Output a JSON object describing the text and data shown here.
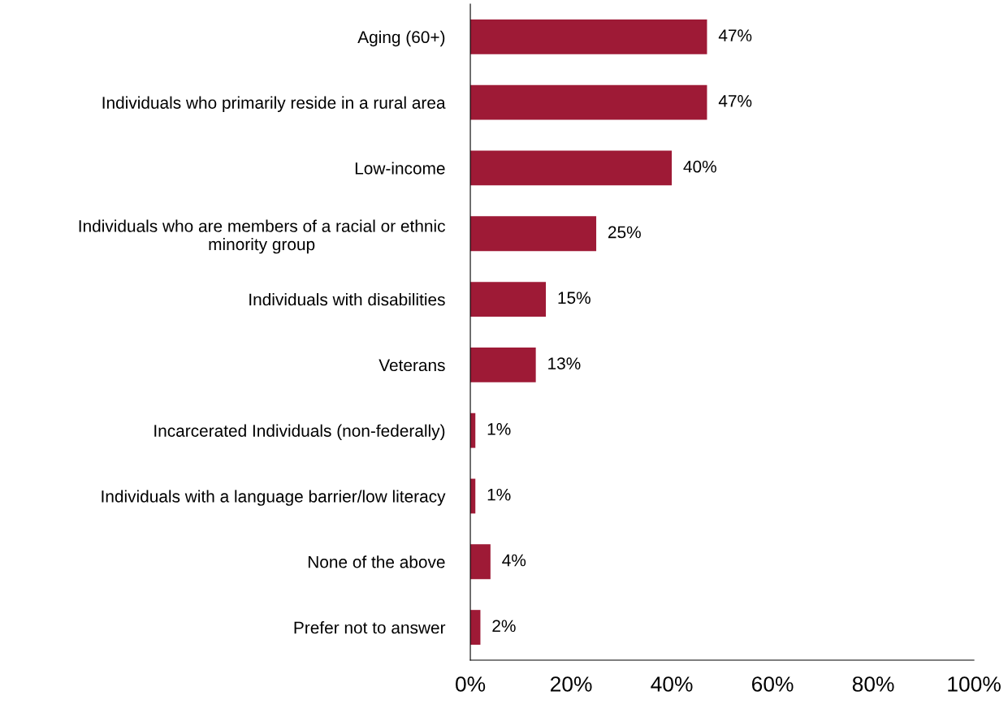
{
  "chart_data": {
    "type": "bar",
    "orientation": "horizontal",
    "categories": [
      "Aging (60+)",
      "Individuals who primarily reside in a rural area",
      "Low-income",
      "Individuals who are members of a racial or ethnic\nminority group",
      "Individuals with disabilities",
      "Veterans",
      "Incarcerated Individuals (non-federally)",
      "Individuals with a language barrier/low literacy",
      "None of the above",
      "Prefer not to answer"
    ],
    "values": [
      47,
      47,
      40,
      25,
      15,
      13,
      1,
      1,
      4,
      2
    ],
    "value_labels": [
      "47%",
      "47%",
      "40%",
      "25%",
      "15%",
      "13%",
      "1%",
      "1%",
      "4%",
      "2%"
    ],
    "color": "#9e1a36",
    "xlim": [
      0,
      100
    ],
    "xticks": [
      {
        "value": 0,
        "label": "0%"
      },
      {
        "value": 20,
        "label": "20%"
      },
      {
        "value": 40,
        "label": "40%"
      },
      {
        "value": 60,
        "label": "60%"
      },
      {
        "value": 80,
        "label": "80%"
      },
      {
        "value": 100,
        "label": "100%"
      }
    ],
    "grid": false,
    "legend": false
  }
}
